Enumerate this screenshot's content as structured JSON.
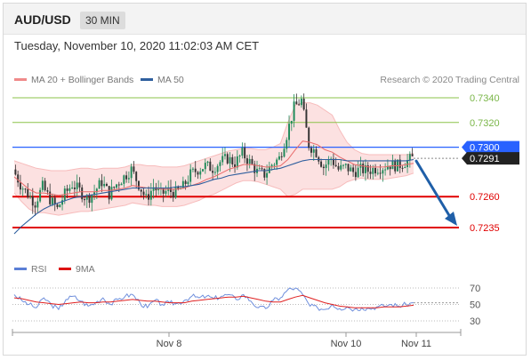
{
  "header": {
    "symbol": "AUD/USD",
    "timeframe": "30 MIN"
  },
  "timestamp": "Tuesday, November 10, 2020 11:02:03 AM CET",
  "credit": "Research © 2020 Trading Central",
  "legend_main": [
    {
      "label": "MA 20 + Bollinger Bands",
      "color": "#f08a8a"
    },
    {
      "label": "MA 50",
      "color": "#2f5f9e"
    }
  ],
  "legend_rsi": [
    {
      "label": "RSI",
      "color": "#5b7fd6"
    },
    {
      "label": "9MA",
      "color": "#dd1111"
    }
  ],
  "chart_data": [
    {
      "type": "line",
      "xlabel": "",
      "ylabel": "",
      "x_ticks": [
        "Nov 8",
        "Nov 10",
        "Nov 11"
      ],
      "y_range": [
        0.7225,
        0.7345
      ],
      "levels": [
        {
          "value": 0.734,
          "label": "0.7340",
          "kind": "resistance",
          "color": "#8bc34a"
        },
        {
          "value": 0.732,
          "label": "0.7320",
          "kind": "resistance",
          "color": "#8bc34a"
        },
        {
          "value": 0.73,
          "label": "0.7300",
          "kind": "pivot",
          "color": "#2962ff"
        },
        {
          "value": 0.7291,
          "label": "0.7291",
          "kind": "last_price",
          "color": "#222222"
        },
        {
          "value": 0.726,
          "label": "0.7260",
          "kind": "support",
          "color": "#e00000"
        },
        {
          "value": 0.7235,
          "label": "0.7235",
          "kind": "support",
          "color": "#e00000"
        }
      ],
      "price_path": [
        0.7282,
        0.727,
        0.7262,
        0.7255,
        0.7268,
        0.7258,
        0.725,
        0.7262,
        0.727,
        0.7265,
        0.7258,
        0.7264,
        0.7272,
        0.7262,
        0.727,
        0.7276,
        0.7282,
        0.727,
        0.7258,
        0.7268,
        0.7262,
        0.7265,
        0.7263,
        0.7268,
        0.7278,
        0.7282,
        0.7285,
        0.7283,
        0.7288,
        0.7291,
        0.7287,
        0.7295,
        0.7288,
        0.728,
        0.7278,
        0.7286,
        0.7291,
        0.731,
        0.7332,
        0.7338,
        0.7302,
        0.7296,
        0.7284,
        0.7291,
        0.7282,
        0.7284,
        0.728,
        0.7282,
        0.7281,
        0.7283,
        0.7284,
        0.7286,
        0.7285,
        0.7288,
        0.7291
      ],
      "ma20": [
        0.7276,
        0.7271,
        0.7266,
        0.7263,
        0.7263,
        0.7262,
        0.7261,
        0.7262,
        0.7263,
        0.7264,
        0.7264,
        0.7264,
        0.7265,
        0.7265,
        0.7266,
        0.7267,
        0.7269,
        0.7268,
        0.7267,
        0.7267,
        0.7266,
        0.7266,
        0.7266,
        0.7267,
        0.7269,
        0.7271,
        0.7274,
        0.7276,
        0.7279,
        0.7282,
        0.7284,
        0.7286,
        0.7286,
        0.7285,
        0.7284,
        0.7284,
        0.7285,
        0.729,
        0.7298,
        0.7305,
        0.7304,
        0.7302,
        0.7298,
        0.7296,
        0.7292,
        0.7289,
        0.7286,
        0.7285,
        0.7284,
        0.7284,
        0.7284,
        0.7285,
        0.7285,
        0.7286,
        0.7287
      ],
      "bb_upper": [
        0.7289,
        0.7287,
        0.7285,
        0.7283,
        0.7282,
        0.7281,
        0.7281,
        0.7281,
        0.7282,
        0.7283,
        0.7283,
        0.7282,
        0.7283,
        0.7283,
        0.7283,
        0.7284,
        0.7286,
        0.7286,
        0.7285,
        0.7285,
        0.7284,
        0.7284,
        0.7284,
        0.7285,
        0.7287,
        0.7289,
        0.7291,
        0.7293,
        0.7295,
        0.7297,
        0.7298,
        0.7299,
        0.7299,
        0.7298,
        0.7298,
        0.73,
        0.7303,
        0.732,
        0.7334,
        0.7336,
        0.7336,
        0.7334,
        0.733,
        0.7326,
        0.7314,
        0.7304,
        0.7298,
        0.7295,
        0.7294,
        0.7294,
        0.7294,
        0.7294,
        0.7294,
        0.7294,
        0.7295
      ],
      "bb_lower": [
        0.7263,
        0.7256,
        0.725,
        0.7247,
        0.7247,
        0.7246,
        0.7245,
        0.7246,
        0.7247,
        0.7248,
        0.7248,
        0.7249,
        0.725,
        0.7251,
        0.7252,
        0.7253,
        0.7255,
        0.7254,
        0.7253,
        0.7253,
        0.7252,
        0.7252,
        0.7252,
        0.7253,
        0.7255,
        0.7257,
        0.726,
        0.7262,
        0.7265,
        0.7268,
        0.7271,
        0.7273,
        0.7273,
        0.7272,
        0.727,
        0.7268,
        0.7266,
        0.726,
        0.7262,
        0.7266,
        0.7266,
        0.7266,
        0.7266,
        0.7266,
        0.7268,
        0.7272,
        0.7274,
        0.7275,
        0.7274,
        0.7274,
        0.7274,
        0.7275,
        0.7276,
        0.7277,
        0.7279
      ],
      "ma50": [
        0.723,
        0.7236,
        0.7241,
        0.7246,
        0.725,
        0.7253,
        0.7255,
        0.7257,
        0.7259,
        0.726,
        0.7261,
        0.7262,
        0.7263,
        0.7264,
        0.7265,
        0.7266,
        0.7267,
        0.7267,
        0.7267,
        0.7267,
        0.7267,
        0.7267,
        0.7268,
        0.7268,
        0.7269,
        0.727,
        0.7272,
        0.7274,
        0.7275,
        0.7277,
        0.7278,
        0.7279,
        0.728,
        0.7281,
        0.7281,
        0.7282,
        0.7283,
        0.7285,
        0.7287,
        0.7289,
        0.729,
        0.729,
        0.729,
        0.729,
        0.729,
        0.7289,
        0.7289,
        0.7289,
        0.7289,
        0.7289,
        0.7289,
        0.7289,
        0.7289,
        0.7289,
        0.729
      ],
      "forecast_arrow": {
        "from": 0.7291,
        "to": 0.7235
      }
    },
    {
      "type": "line",
      "xlabel": "",
      "ylabel": "",
      "y_range": [
        20,
        80
      ],
      "y_ticks": [
        70,
        50,
        30
      ],
      "rsi": [
        62,
        55,
        50,
        46,
        58,
        50,
        44,
        56,
        60,
        54,
        48,
        52,
        58,
        50,
        56,
        60,
        62,
        52,
        46,
        55,
        50,
        52,
        51,
        55,
        60,
        58,
        60,
        57,
        60,
        62,
        56,
        62,
        54,
        46,
        45,
        55,
        58,
        68,
        70,
        62,
        48,
        46,
        44,
        50,
        45,
        47,
        44,
        46,
        45,
        47,
        48,
        50,
        48,
        50,
        52
      ],
      "rsi_ma": [
        58,
        57,
        55,
        53,
        52,
        51,
        50,
        51,
        52,
        53,
        52,
        52,
        53,
        53,
        54,
        55,
        56,
        55,
        54,
        54,
        53,
        52,
        52,
        52,
        54,
        55,
        56,
        57,
        58,
        59,
        59,
        60,
        58,
        56,
        54,
        53,
        53,
        56,
        59,
        61,
        58,
        55,
        52,
        50,
        48,
        47,
        46,
        46,
        46,
        46,
        47,
        47,
        47,
        48,
        49
      ]
    }
  ]
}
